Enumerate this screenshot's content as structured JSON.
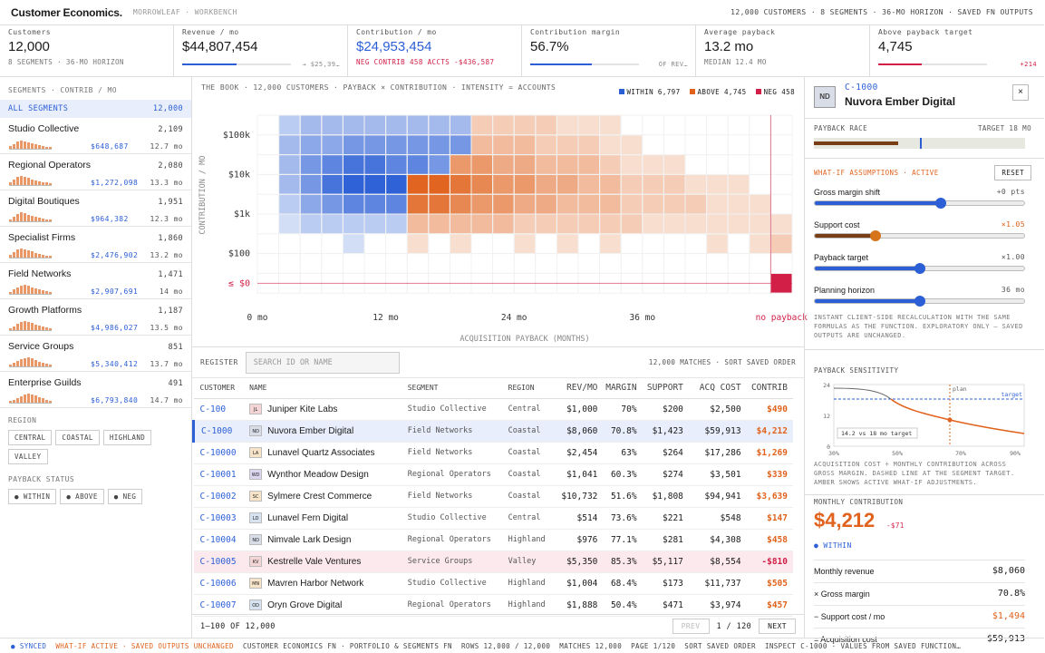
{
  "header": {
    "app_title": "Customer Economics.",
    "breadcrumb": "MORROWLEAF · WORKBENCH",
    "summary": "12,000 CUSTOMERS · 8 SEGMENTS · 36-MO HORIZON · SAVED FN OUTPUTS"
  },
  "kpis": [
    {
      "label": "Customers",
      "value": "12,000",
      "sub": "8 SEGMENTS · 36-MO HORIZON",
      "bar_fraction": null,
      "bar_note": ""
    },
    {
      "label": "Revenue / mo",
      "value": "$44,807,454",
      "sub": "",
      "bar_fraction": 0.5,
      "bar_note": "→ $25,39…"
    },
    {
      "label": "Contribution / mo",
      "value": "$24,953,454",
      "sub": "NEG CONTRIB 458 ACCTS  -$436,587",
      "bar_fraction": null,
      "bar_note": ""
    },
    {
      "label": "Contribution margin",
      "value": "56.7%",
      "sub": "",
      "bar_fraction": 0.567,
      "bar_note": "OF REV…"
    },
    {
      "label": "Average payback",
      "value": "13.2 mo",
      "sub": "MEDIAN 12.4 MO",
      "bar_fraction": null,
      "bar_note": ""
    },
    {
      "label": "Above payback target",
      "value": "4,745",
      "sub": "",
      "bar_fraction": 0.4,
      "bar_note": "+214"
    }
  ],
  "colors": {
    "blue": "#2c5fd6",
    "orange": "#e0621c",
    "red": "#d21f47",
    "brown": "#7a3e16"
  },
  "sidebar": {
    "segments_title": "SEGMENTS · CONTRIB / MO",
    "all_label": "ALL SEGMENTS",
    "all_count": "12,000",
    "segments": [
      {
        "name": "Studio Collective",
        "count": "2,109",
        "contrib": "$648,687",
        "payback": "12.7 mo"
      },
      {
        "name": "Regional Operators",
        "count": "2,080",
        "contrib": "$1,272,098",
        "payback": "13.3 mo"
      },
      {
        "name": "Digital Boutiques",
        "count": "1,951",
        "contrib": "$964,382",
        "payback": "12.3 mo"
      },
      {
        "name": "Specialist Firms",
        "count": "1,860",
        "contrib": "$2,476,902",
        "payback": "13.2 mo"
      },
      {
        "name": "Field Networks",
        "count": "1,471",
        "contrib": "$2,907,691",
        "payback": "14 mo"
      },
      {
        "name": "Growth Platforms",
        "count": "1,187",
        "contrib": "$4,986,027",
        "payback": "13.5 mo"
      },
      {
        "name": "Service Groups",
        "count": "851",
        "contrib": "$5,340,412",
        "payback": "13.7 mo"
      },
      {
        "name": "Enterprise Guilds",
        "count": "491",
        "contrib": "$6,793,840",
        "payback": "14.7 mo"
      }
    ],
    "region_title": "REGION",
    "regions": [
      "CENTRAL",
      "COASTAL",
      "HIGHLAND",
      "VALLEY"
    ],
    "status_title": "PAYBACK STATUS",
    "statuses": [
      "● WITHIN",
      "● ABOVE",
      "● NEG"
    ]
  },
  "chart": {
    "title": "THE BOOK · 12,000 CUSTOMERS · PAYBACK × CONTRIBUTION · INTENSITY = ACCOUNTS",
    "legend": [
      {
        "label": "WITHIN",
        "count": "6,797",
        "color": "#2c5fd6"
      },
      {
        "label": "ABOVE",
        "count": "4,745",
        "color": "#e0621c"
      },
      {
        "label": "NEG",
        "count": "458",
        "color": "#d21f47"
      }
    ],
    "ylabel": "CONTRIBUTION / MO",
    "xlabel": "ACQUISITION PAYBACK (MONTHS)",
    "yticks": [
      "$100k",
      "$10k",
      "$1k",
      "$100",
      "≤ $0"
    ],
    "xticks": [
      "0 mo",
      "12 mo",
      "24 mo",
      "36 mo",
      "no payback"
    ]
  },
  "chart_data": {
    "type": "heatmap",
    "title": "",
    "xlabel": "ACQUISITION PAYBACK (MONTHS)",
    "ylabel": "CONTRIBUTION / MO",
    "x_categories": [
      "0-2",
      "2-4",
      "4-6",
      "6-8",
      "8-10",
      "10-12",
      "12-14",
      "14-16",
      "16-18",
      "18-20",
      "20-22",
      "22-24",
      "24-26",
      "26-28",
      "28-30",
      "30-32",
      "32-34",
      "34-36",
      "36-38",
      "38-40",
      "40-42",
      "42-44",
      "44-46",
      "46-48",
      "no payback"
    ],
    "y_categories": [
      "$100k+",
      "$30k",
      "$10k",
      "$3k",
      "$1k",
      "$300",
      "$100",
      "$30",
      "≤ $0"
    ],
    "target_months": 18,
    "grid": [
      [
        0,
        2,
        3,
        3,
        3,
        3,
        3,
        3,
        3,
        3,
        -2,
        -2,
        -2,
        -2,
        -1,
        -1,
        -1,
        0,
        0,
        0,
        0,
        0,
        0,
        0,
        0
      ],
      [
        0,
        3,
        4,
        4,
        5,
        5,
        5,
        5,
        5,
        5,
        -3,
        -3,
        -3,
        -2,
        -2,
        -2,
        -1,
        -1,
        0,
        0,
        0,
        0,
        0,
        0,
        0
      ],
      [
        0,
        3,
        5,
        6,
        7,
        7,
        6,
        6,
        5,
        -5,
        -5,
        -4,
        -4,
        -3,
        -3,
        -3,
        -2,
        -1,
        -1,
        -1,
        0,
        0,
        0,
        0,
        0
      ],
      [
        0,
        3,
        5,
        7,
        8,
        8,
        8,
        -8,
        -8,
        -7,
        -6,
        -5,
        -5,
        -4,
        -4,
        -3,
        -3,
        -2,
        -2,
        -2,
        -1,
        -1,
        -1,
        0,
        0
      ],
      [
        0,
        2,
        4,
        5,
        6,
        6,
        6,
        -7,
        -7,
        -6,
        -5,
        -5,
        -4,
        -4,
        -3,
        -3,
        -3,
        -2,
        -2,
        -2,
        -2,
        -1,
        -1,
        -1,
        0
      ],
      [
        0,
        1,
        2,
        2,
        2,
        2,
        2,
        -3,
        -3,
        -3,
        -3,
        -3,
        -2,
        -2,
        -2,
        -2,
        -2,
        -2,
        -1,
        -1,
        -1,
        -1,
        -1,
        -1,
        -1
      ],
      [
        0,
        0,
        0,
        0,
        1,
        0,
        0,
        -1,
        0,
        -1,
        0,
        0,
        -1,
        0,
        -1,
        0,
        -1,
        0,
        0,
        0,
        0,
        -1,
        0,
        -1,
        -2
      ],
      [
        0,
        0,
        0,
        0,
        0,
        0,
        0,
        0,
        0,
        0,
        0,
        0,
        0,
        0,
        0,
        0,
        0,
        0,
        0,
        0,
        0,
        0,
        0,
        0,
        0
      ],
      [
        0,
        0,
        0,
        0,
        0,
        0,
        0,
        0,
        0,
        0,
        0,
        0,
        0,
        0,
        0,
        0,
        0,
        0,
        0,
        0,
        0,
        0,
        0,
        0,
        9
      ]
    ]
  },
  "register": {
    "label": "REGISTER",
    "search_placeholder": "SEARCH ID OR NAME",
    "matches": "12,000 MATCHES · SORT SAVED ORDER",
    "columns": [
      "CUSTOMER",
      "NAME",
      "SEGMENT",
      "REGION",
      "REV/MO",
      "MARGIN",
      "SUPPORT",
      "ACQ COST",
      "CONTRIB"
    ],
    "rows": [
      {
        "id": "C-100",
        "av": "JL",
        "name": "Juniper Kite Labs",
        "segment": "Studio Collective",
        "region": "Central",
        "rev": "$1,000",
        "margin": "70%",
        "support": "$200",
        "acq": "$2,500",
        "contrib": "$490",
        "state": ""
      },
      {
        "id": "C-1000",
        "av": "ND",
        "name": "Nuvora Ember Digital",
        "segment": "Field Networks",
        "region": "Coastal",
        "rev": "$8,060",
        "margin": "70.8%",
        "support": "$1,423",
        "acq": "$59,913",
        "contrib": "$4,212",
        "state": "sel"
      },
      {
        "id": "C-10000",
        "av": "LA",
        "name": "Lunavel Quartz Associates",
        "segment": "Field Networks",
        "region": "Coastal",
        "rev": "$2,454",
        "margin": "63%",
        "support": "$264",
        "acq": "$17,286",
        "contrib": "$1,269",
        "state": ""
      },
      {
        "id": "C-10001",
        "av": "WD",
        "name": "Wynthor Meadow Design",
        "segment": "Regional Operators",
        "region": "Coastal",
        "rev": "$1,041",
        "margin": "60.3%",
        "support": "$274",
        "acq": "$3,501",
        "contrib": "$339",
        "state": ""
      },
      {
        "id": "C-10002",
        "av": "SC",
        "name": "Sylmere Crest Commerce",
        "segment": "Field Networks",
        "region": "Coastal",
        "rev": "$10,732",
        "margin": "51.6%",
        "support": "$1,808",
        "acq": "$94,941",
        "contrib": "$3,639",
        "state": ""
      },
      {
        "id": "C-10003",
        "av": "LD",
        "name": "Lunavel Fern Digital",
        "segment": "Studio Collective",
        "region": "Central",
        "rev": "$514",
        "margin": "73.6%",
        "support": "$221",
        "acq": "$548",
        "contrib": "$147",
        "state": ""
      },
      {
        "id": "C-10004",
        "av": "ND",
        "name": "Nimvale Lark Design",
        "segment": "Regional Operators",
        "region": "Highland",
        "rev": "$976",
        "margin": "77.1%",
        "support": "$281",
        "acq": "$4,308",
        "contrib": "$458",
        "state": ""
      },
      {
        "id": "C-10005",
        "av": "KV",
        "name": "Kestrelle Vale Ventures",
        "segment": "Service Groups",
        "region": "Valley",
        "rev": "$5,350",
        "margin": "85.3%",
        "support": "$5,117",
        "acq": "$8,554",
        "contrib": "-$810",
        "state": "neg"
      },
      {
        "id": "C-10006",
        "av": "MN",
        "name": "Mavren Harbor Network",
        "segment": "Studio Collective",
        "region": "Highland",
        "rev": "$1,004",
        "margin": "68.4%",
        "support": "$173",
        "acq": "$11,737",
        "contrib": "$505",
        "state": ""
      },
      {
        "id": "C-10007",
        "av": "OD",
        "name": "Oryn Grove Digital",
        "segment": "Regional Operators",
        "region": "Highland",
        "rev": "$1,888",
        "margin": "50.4%",
        "support": "$471",
        "acq": "$3,974",
        "contrib": "$457",
        "state": ""
      }
    ],
    "range": "1–100 OF 12,000",
    "prev": "PREV",
    "page": "1 / 120",
    "next": "NEXT"
  },
  "detail": {
    "initials": "ND",
    "id": "C-1000",
    "name": "Nuvora Ember Digital",
    "close": "×",
    "race_title": "PAYBACK RACE",
    "race_target": "TARGET 18 MO",
    "race_progress": 0.4,
    "race_marker": 0.5,
    "whatif_title": "WHAT-IF ASSUMPTIONS · ACTIVE",
    "reset": "RESET",
    "sliders": [
      {
        "name": "Gross margin shift",
        "value": "+0 pts",
        "level": 0.6,
        "active": false
      },
      {
        "name": "Support cost",
        "value": "×1.05",
        "level": 0.29,
        "active": true
      },
      {
        "name": "Payback target",
        "value": "×1.00",
        "level": 0.5,
        "active": false
      },
      {
        "name": "Planning horizon",
        "value": "36 mo",
        "level": 0.5,
        "active": false
      }
    ],
    "whatif_note": "INSTANT CLIENT-SIDE RECALCULATION WITH THE SAME FORMULAS AS THE FUNCTION. EXPLORATORY ONLY — SAVED OUTPUTS ARE UNCHANGED.",
    "sens_title": "PAYBACK SENSITIVITY",
    "sens_plan": "plan",
    "sens_target": "target",
    "sens_tag": "14.2 vs 18 mo target",
    "sens_yticks": [
      "24",
      "12",
      "0"
    ],
    "sens_xticks": [
      "30%",
      "50%",
      "70%",
      "90%"
    ],
    "sens_note": "ACQUISITION COST ÷ MONTHLY CONTRIBUTION ACROSS GROSS MARGIN. DASHED LINE AT THE SEGMENT TARGET. AMBER SHOWS ACTIVE WHAT-IF ADJUSTMENTS.",
    "contrib_title": "MONTHLY CONTRIBUTION",
    "contrib_value": "$4,212",
    "contrib_delta": "-$71",
    "contrib_status": "● WITHIN",
    "breakdown": [
      {
        "k": "Monthly revenue",
        "v": "$8,060",
        "c": ""
      },
      {
        "k": "× Gross margin",
        "v": "70.8%",
        "c": ""
      },
      {
        "k": "− Support cost / mo",
        "v": "$1,494",
        "c": "org"
      },
      {
        "k": "= Acquisition cost",
        "v": "$59,913",
        "c": ""
      }
    ]
  },
  "status": [
    {
      "t": "● SYNCED",
      "c": "bl"
    },
    {
      "t": "WHAT-IF ACTIVE · SAVED OUTPUTS UNCHANGED",
      "c": "org"
    },
    {
      "t": "CUSTOMER ECONOMICS FN · PORTFOLIO & SEGMENTS FN",
      "c": ""
    },
    {
      "t": "ROWS 12,000 / 12,000",
      "c": ""
    },
    {
      "t": "MATCHES 12,000",
      "c": ""
    },
    {
      "t": "PAGE 1/120",
      "c": ""
    },
    {
      "t": "SORT SAVED ORDER",
      "c": ""
    },
    {
      "t": "INSPECT C-1000 · VALUES FROM SAVED FUNCTION…",
      "c": ""
    }
  ]
}
